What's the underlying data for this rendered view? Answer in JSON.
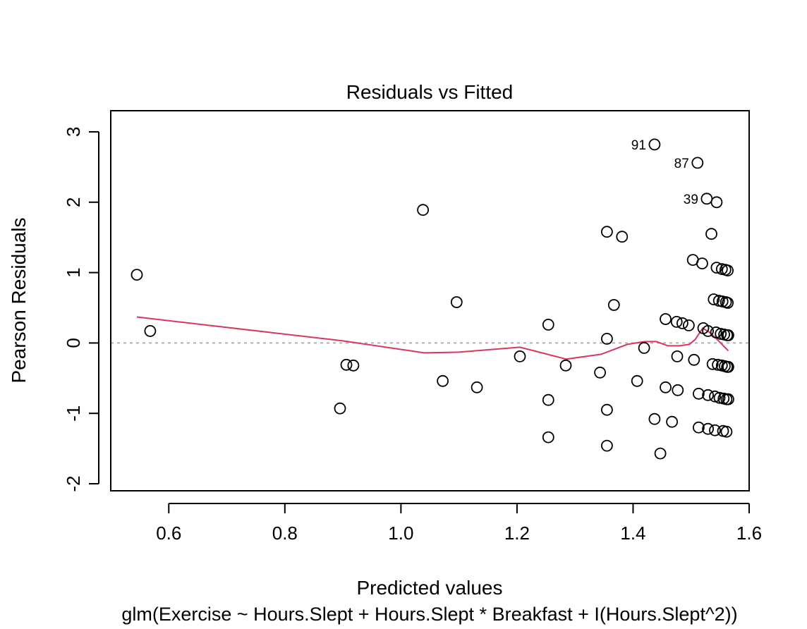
{
  "chart_data": {
    "type": "scatter",
    "title": "Residuals vs Fitted",
    "xlabel": "Predicted values",
    "ylabel": "Pearson Residuals",
    "subtitle": "glm(Exercise ~ Hours.Slept + Hours.Slept * Breakfast + I(Hours.Slept^2))",
    "xlim": [
      0.5,
      1.6
    ],
    "ylim": [
      -2.1,
      3.3
    ],
    "x_ticks": [
      0.6,
      0.8,
      1.0,
      1.2,
      1.4,
      1.6
    ],
    "x_tick_labels": [
      "0.6",
      "0.8",
      "1.0",
      "1.2",
      "1.4",
      "1.6"
    ],
    "y_ticks": [
      -2,
      -1,
      0,
      1,
      2,
      3
    ],
    "y_tick_labels": [
      "-2",
      "-1",
      "0",
      "1",
      "2",
      "3"
    ],
    "reference_line": {
      "y": 0,
      "style": "dotted",
      "color": "#b0b0b0"
    },
    "colors": {
      "points": "#000000",
      "smoother": "#d6385e"
    },
    "points": [
      {
        "x": 0.545,
        "y": 0.97
      },
      {
        "x": 0.568,
        "y": 0.17
      },
      {
        "x": 0.895,
        "y": -0.93
      },
      {
        "x": 0.906,
        "y": -0.31
      },
      {
        "x": 0.918,
        "y": -0.32
      },
      {
        "x": 1.038,
        "y": 1.89
      },
      {
        "x": 1.072,
        "y": -0.54
      },
      {
        "x": 1.096,
        "y": 0.58
      },
      {
        "x": 1.131,
        "y": -0.63
      },
      {
        "x": 1.205,
        "y": -0.19
      },
      {
        "x": 1.254,
        "y": 0.26
      },
      {
        "x": 1.254,
        "y": -0.81
      },
      {
        "x": 1.254,
        "y": -1.34
      },
      {
        "x": 1.284,
        "y": -0.32
      },
      {
        "x": 1.343,
        "y": -0.42
      },
      {
        "x": 1.355,
        "y": 1.58
      },
      {
        "x": 1.355,
        "y": 0.06
      },
      {
        "x": 1.355,
        "y": -0.95
      },
      {
        "x": 1.355,
        "y": -1.46
      },
      {
        "x": 1.367,
        "y": 0.54
      },
      {
        "x": 1.381,
        "y": 1.51
      },
      {
        "x": 1.407,
        "y": -0.54
      },
      {
        "x": 1.419,
        "y": -0.07
      },
      {
        "x": 1.437,
        "y": 2.82
      },
      {
        "x": 1.437,
        "y": -1.08
      },
      {
        "x": 1.447,
        "y": -1.57
      },
      {
        "x": 1.456,
        "y": 0.34
      },
      {
        "x": 1.456,
        "y": -0.63
      },
      {
        "x": 1.467,
        "y": -1.12
      },
      {
        "x": 1.475,
        "y": 0.3
      },
      {
        "x": 1.476,
        "y": -0.19
      },
      {
        "x": 1.477,
        "y": -0.67
      },
      {
        "x": 1.485,
        "y": 0.28
      },
      {
        "x": 1.496,
        "y": 0.25
      },
      {
        "x": 1.503,
        "y": 1.18
      },
      {
        "x": 1.505,
        "y": -0.24
      },
      {
        "x": 1.511,
        "y": 2.56
      },
      {
        "x": 1.513,
        "y": -0.72
      },
      {
        "x": 1.513,
        "y": -1.2
      },
      {
        "x": 1.519,
        "y": 1.13
      },
      {
        "x": 1.521,
        "y": 0.21
      },
      {
        "x": 1.527,
        "y": 2.05
      },
      {
        "x": 1.529,
        "y": 0.17
      },
      {
        "x": 1.529,
        "y": -0.74
      },
      {
        "x": 1.529,
        "y": -1.22
      },
      {
        "x": 1.535,
        "y": 1.55
      },
      {
        "x": 1.537,
        "y": -0.3
      },
      {
        "x": 1.539,
        "y": 0.62
      },
      {
        "x": 1.541,
        "y": -0.76
      },
      {
        "x": 1.541,
        "y": -1.24
      },
      {
        "x": 1.543,
        "y": 0.15
      },
      {
        "x": 1.544,
        "y": 2.0
      },
      {
        "x": 1.544,
        "y": 1.07
      },
      {
        "x": 1.546,
        "y": -0.31
      },
      {
        "x": 1.548,
        "y": 0.6
      },
      {
        "x": 1.549,
        "y": -0.78
      },
      {
        "x": 1.551,
        "y": 0.13
      },
      {
        "x": 1.553,
        "y": -0.32
      },
      {
        "x": 1.553,
        "y": 1.05
      },
      {
        "x": 1.554,
        "y": 0.59
      },
      {
        "x": 1.555,
        "y": -1.25
      },
      {
        "x": 1.556,
        "y": -0.79
      },
      {
        "x": 1.557,
        "y": 0.12
      },
      {
        "x": 1.558,
        "y": -0.33
      },
      {
        "x": 1.559,
        "y": 1.04
      },
      {
        "x": 1.56,
        "y": 0.58
      },
      {
        "x": 1.561,
        "y": -1.26
      },
      {
        "x": 1.561,
        "y": -0.8
      },
      {
        "x": 1.562,
        "y": 0.11
      },
      {
        "x": 1.562,
        "y": -0.34
      },
      {
        "x": 1.563,
        "y": 1.03
      },
      {
        "x": 1.563,
        "y": 0.57
      },
      {
        "x": 1.564,
        "y": -0.8
      },
      {
        "x": 1.564,
        "y": 0.11
      },
      {
        "x": 1.564,
        "y": -0.34
      }
    ],
    "annotations": [
      {
        "label": "91",
        "x": 1.437,
        "y": 2.82
      },
      {
        "label": "87",
        "x": 1.511,
        "y": 2.56
      },
      {
        "label": "39",
        "x": 1.527,
        "y": 2.05
      }
    ],
    "smoother": {
      "x": [
        0.545,
        0.9,
        1.04,
        1.1,
        1.205,
        1.285,
        1.345,
        1.39,
        1.42,
        1.44,
        1.46,
        1.48,
        1.497,
        1.507,
        1.52,
        1.532,
        1.545,
        1.564
      ],
      "y": [
        0.37,
        0.03,
        -0.14,
        -0.13,
        -0.06,
        -0.23,
        -0.16,
        -0.02,
        0.02,
        0.02,
        -0.04,
        -0.04,
        -0.02,
        0.05,
        0.21,
        0.15,
        0.05,
        -0.11
      ]
    }
  }
}
